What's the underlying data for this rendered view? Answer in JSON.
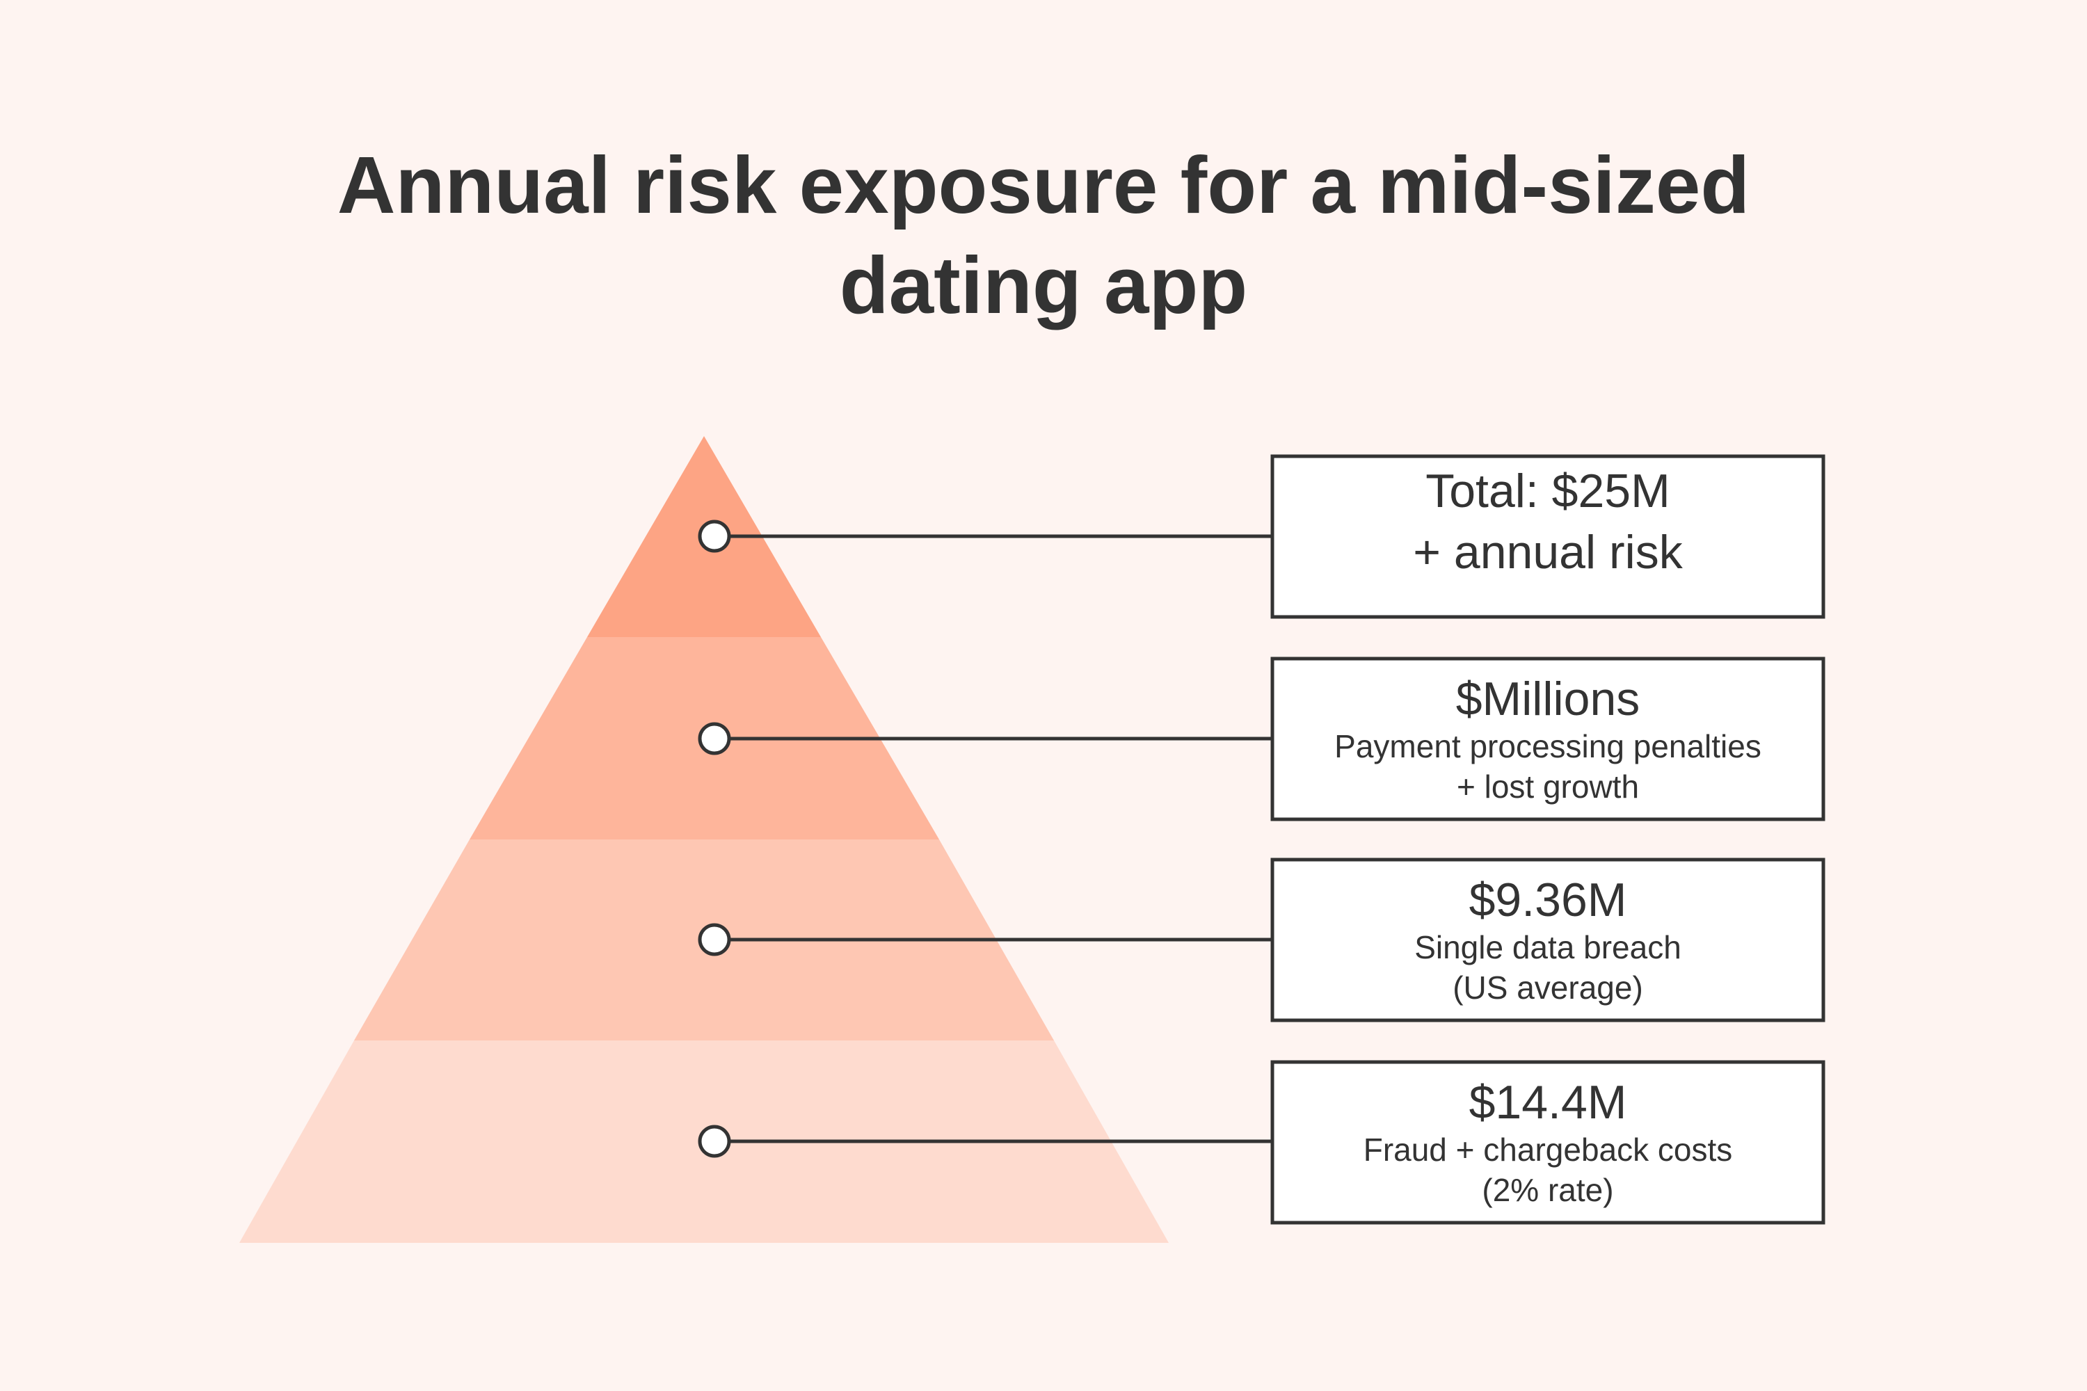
{
  "title": {
    "lines": [
      "Annual risk exposure for a mid-sized",
      "dating app"
    ]
  },
  "levels": [
    {
      "heading": "Total: $25M",
      "lines": [
        "+ annual risk"
      ]
    },
    {
      "heading": "$Millions",
      "lines": [
        "Payment processing penalties",
        "+ lost growth"
      ]
    },
    {
      "heading": "$9.36M",
      "lines": [
        "Single data breach",
        "(US average)"
      ]
    },
    {
      "heading": "$14.4M",
      "lines": [
        "Fraud + chargeback costs",
        "(2% rate)"
      ]
    }
  ]
}
